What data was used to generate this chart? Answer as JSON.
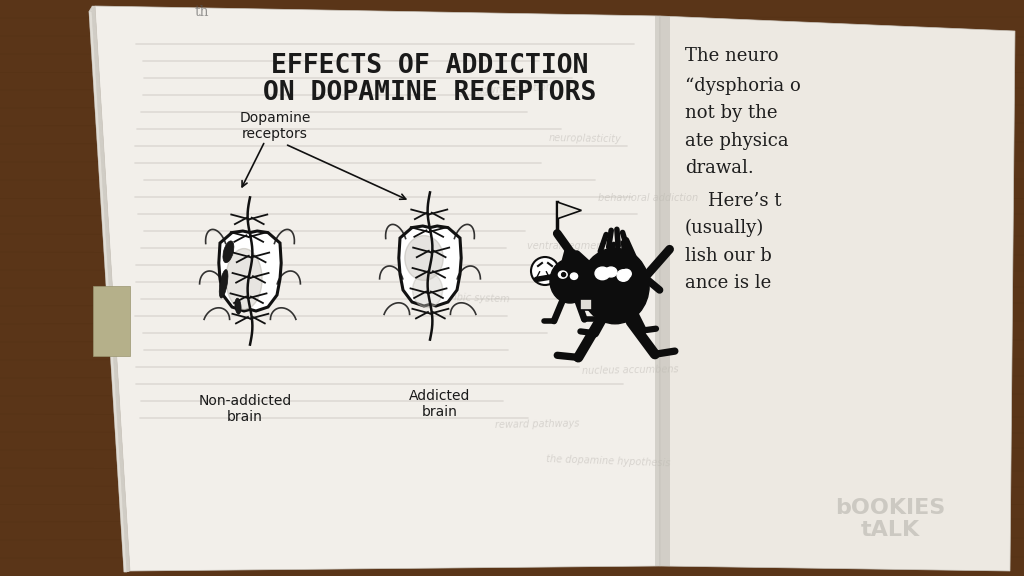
{
  "title_line1": "EFFECTS OF ADDICTION",
  "title_line2": "ON DOPAMINE RECEPTORS",
  "label_dopamine": "Dopamine\nreceptors",
  "label_non_addicted": "Non-addicted\nbrain",
  "label_addicted": "Addicted\nbrain",
  "watermark_line1": "bOOKIES",
  "watermark_line2": "tALK",
  "bg_wood_color": "#5a3518",
  "left_page_color": "#f2efea",
  "right_page_color": "#ede9e2",
  "bookmark_color": "#b5b08a",
  "text_dark": "#1a1a1a",
  "text_faint": "#9a9590",
  "title_fontsize": 19,
  "label_fontsize": 10,
  "right_text_lines": [
    "The neuro",
    "“dysphoria o",
    "not by the",
    "ate physica",
    "drawal.",
    "    Here’s t",
    "(usually)",
    "lish our b",
    "ance is le"
  ]
}
